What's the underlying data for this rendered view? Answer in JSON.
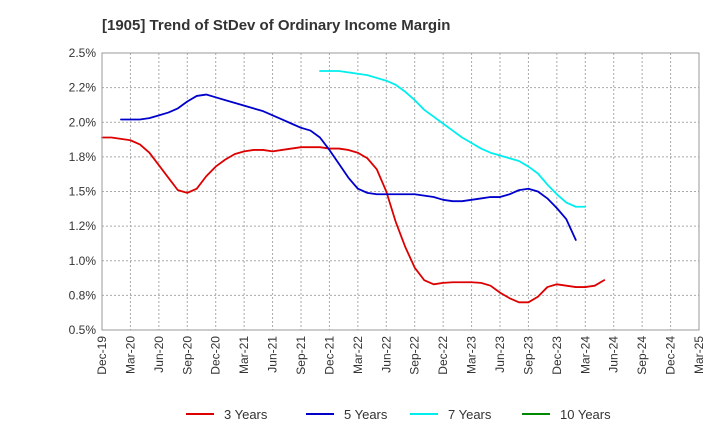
{
  "chart_data": {
    "type": "line",
    "title": "[1905]  Trend of StDev of Ordinary Income Margin",
    "xlabel": "",
    "ylabel": "",
    "x_tick_labels": [
      "Dec-19",
      "Mar-20",
      "Jun-20",
      "Sep-20",
      "Dec-20",
      "Mar-21",
      "Jun-21",
      "Sep-21",
      "Dec-21",
      "Mar-22",
      "Jun-22",
      "Sep-22",
      "Dec-22",
      "Mar-23",
      "Jun-23",
      "Sep-23",
      "Dec-23",
      "Mar-24",
      "Jun-24",
      "Sep-24",
      "Dec-24",
      "Mar-25"
    ],
    "y_tick_labels": [
      "0.5%",
      "0.8%",
      "1.0%",
      "1.2%",
      "1.5%",
      "1.8%",
      "2.0%",
      "2.2%",
      "2.5%"
    ],
    "ylim": [
      0.5,
      2.5
    ],
    "grid": true,
    "legend_position": "bottom",
    "series": [
      {
        "name": "3 Years",
        "color": "#dd0000",
        "start_index": 0,
        "values": [
          1.89,
          1.89,
          1.88,
          1.87,
          1.84,
          1.78,
          1.69,
          1.6,
          1.51,
          1.49,
          1.52,
          1.61,
          1.68,
          1.73,
          1.77,
          1.79,
          1.8,
          1.8,
          1.79,
          1.8,
          1.81,
          1.82,
          1.82,
          1.82,
          1.81,
          1.81,
          1.8,
          1.78,
          1.74,
          1.66,
          1.5,
          1.28,
          1.1,
          0.95,
          0.86,
          0.83,
          0.84,
          0.845,
          0.845,
          0.845,
          0.84,
          0.82,
          0.77,
          0.73,
          0.7,
          0.7,
          0.74,
          0.81,
          0.83,
          0.82,
          0.81,
          0.81,
          0.82,
          0.86
        ]
      },
      {
        "name": "5 Years",
        "color": "#0000cc",
        "start_index": 2,
        "values": [
          2.02,
          2.02,
          2.02,
          2.03,
          2.05,
          2.07,
          2.1,
          2.15,
          2.19,
          2.2,
          2.18,
          2.16,
          2.14,
          2.12,
          2.1,
          2.08,
          2.05,
          2.02,
          1.99,
          1.96,
          1.94,
          1.89,
          1.8,
          1.7,
          1.6,
          1.52,
          1.49,
          1.48,
          1.48,
          1.48,
          1.48,
          1.48,
          1.47,
          1.46,
          1.44,
          1.43,
          1.43,
          1.44,
          1.45,
          1.46,
          1.46,
          1.48,
          1.51,
          1.52,
          1.5,
          1.45,
          1.38,
          1.3,
          1.15
        ]
      },
      {
        "name": "7 Years",
        "color": "#00eeee",
        "start_index": 23,
        "values": [
          2.37,
          2.37,
          2.37,
          2.36,
          2.35,
          2.34,
          2.32,
          2.3,
          2.27,
          2.22,
          2.16,
          2.09,
          2.04,
          1.99,
          1.94,
          1.89,
          1.85,
          1.81,
          1.78,
          1.76,
          1.74,
          1.72,
          1.68,
          1.63,
          1.55,
          1.48,
          1.42,
          1.39,
          1.39
        ]
      },
      {
        "name": "10 Years",
        "color": "#008800",
        "start_index": 0,
        "values": []
      }
    ]
  }
}
